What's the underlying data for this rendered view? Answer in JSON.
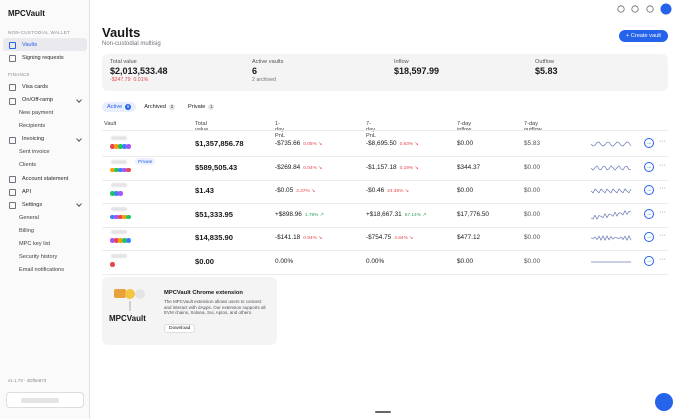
{
  "sidebar": {
    "logo": "MPCVault",
    "groups": [
      {
        "heading": "NON-CUSTODIAL WALLET",
        "items": [
          {
            "label": "Vaults"
          },
          {
            "label": "Signing requests"
          }
        ]
      },
      {
        "heading": "FINANCE",
        "items": [
          {
            "label": "Visa cards"
          },
          {
            "label": "On/Off-ramp",
            "children": [
              "New payment",
              "Recipients"
            ]
          },
          {
            "label": "Invoicing",
            "children": [
              "Sent invoice",
              "Clients"
            ]
          },
          {
            "label": "Account statement"
          },
          {
            "label": "API"
          },
          {
            "label": "Settings",
            "children": [
              "General",
              "Billing",
              "MPC key list",
              "Security history",
              "Email notifications"
            ]
          }
        ]
      }
    ],
    "version": "v1.1.73 · 4Df5e873"
  },
  "header": {
    "title": "Vaults",
    "subtitle": "Non-custodial multisig",
    "button": "Create vault"
  },
  "stats": [
    {
      "label": "Total value",
      "value": "$2,013,533.48",
      "change": "-$247.79",
      "pct": "0.01%"
    },
    {
      "label": "Active vaults",
      "value": "6",
      "note": "2 archived"
    },
    {
      "label": "Inflow",
      "value": "$18,597.99"
    },
    {
      "label": "Outflow",
      "value": "$5.83"
    }
  ],
  "tabs": [
    {
      "label": "Active",
      "count": "6"
    },
    {
      "label": "Archived",
      "count": "2"
    },
    {
      "label": "Private",
      "count": "1"
    }
  ],
  "table": {
    "columns": [
      "Vault",
      "Total value",
      "1-day PnL",
      "7-day PnL",
      "7-day inflow",
      "7-day outflow"
    ],
    "rows": [
      {
        "total": "$1,357,856.78",
        "pnl_1d": {
          "amount": "-$735.66",
          "pct": "0.05%"
        },
        "pnl_7d": {
          "amount": "-$8,695.50",
          "pct": "0.63%"
        },
        "inflow": "$0.00",
        "outflow": "$5.83"
      },
      {
        "tag": "Private",
        "total": "$589,505.43",
        "pnl_1d": {
          "amount": "-$269.84",
          "pct": "0.04%"
        },
        "pnl_7d": {
          "amount": "-$1,157.18",
          "pct": "0.19%"
        },
        "inflow": "$344.37",
        "outflow": "$0.00"
      },
      {
        "total": "$1.43",
        "pnl_1d": {
          "amount": "-$0.05",
          "pct": "3.37%"
        },
        "pnl_7d": {
          "amount": "-$0.46",
          "pct": "24.35%"
        },
        "inflow": "$0.00",
        "outflow": "$0.00"
      },
      {
        "total": "$51,333.95",
        "pnl_1d": {
          "amount": "+$898.96",
          "pct": "1.78%"
        },
        "pnl_7d": {
          "amount": "+$18,667.31",
          "pct": "57.14%"
        },
        "inflow": "$17,776.50",
        "outflow": "$0.00"
      },
      {
        "total": "$14,835.90",
        "pnl_1d": {
          "amount": "-$141.18",
          "pct": "0.94%"
        },
        "pnl_7d": {
          "amount": "-$754.75",
          "pct": "4.84%"
        },
        "inflow": "$477.12",
        "outflow": "$0.00"
      },
      {
        "total": "$0.00",
        "pnl_1d": {
          "pct": "0.00%"
        },
        "pnl_7d": {
          "pct": "0.00%"
        },
        "inflow": "$0.00",
        "outflow": "$0.00"
      }
    ]
  },
  "extension": {
    "title": "MPCVault Chrome extension",
    "description": "The MPCVault extension allows users to connect and interact with dApps. Our extension supports all EVM chains, Solana, Sui, Aptos, and others.",
    "button": "Download",
    "logo": "MPCVault"
  }
}
